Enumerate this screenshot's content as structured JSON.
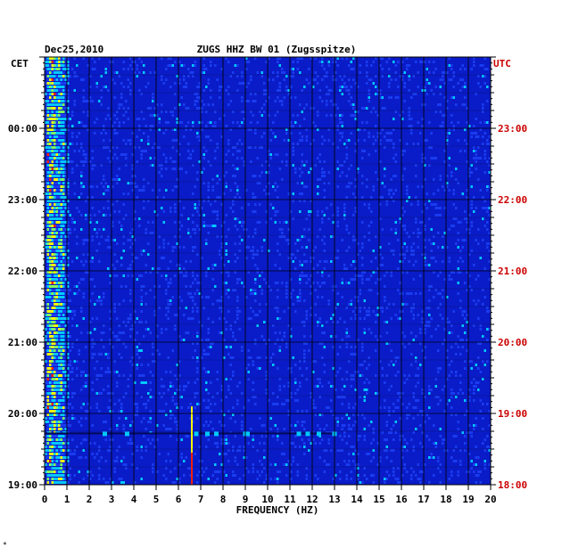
{
  "header": {
    "date": "Dec25,2010",
    "station": "ZUGS HHZ BW 01 (Zugsspitze)"
  },
  "left_axis": {
    "label": "CET",
    "color": "#000000"
  },
  "right_axis": {
    "label": "UTC",
    "color": "#cc0000"
  },
  "footnote": "*",
  "chart_data": {
    "type": "heatmap",
    "title": "ZUGS HHZ BW 01 (Zugsspitze)",
    "date": "Dec25,2010",
    "xlabel": "FREQUENCY (HZ)",
    "xlim": [
      0,
      20
    ],
    "x_ticks": [
      "0",
      "1",
      "2",
      "3",
      "4",
      "5",
      "6",
      "7",
      "8",
      "9",
      "10",
      "11",
      "12",
      "13",
      "14",
      "15",
      "16",
      "17",
      "18",
      "19",
      "20"
    ],
    "y_hours_top_to_bottom": 6,
    "cet_tick_labels": [
      {
        "label": "00:00",
        "hours_from_bottom": 5
      },
      {
        "label": "23:00",
        "hours_from_bottom": 4
      },
      {
        "label": "22:00",
        "hours_from_bottom": 3
      },
      {
        "label": "21:00",
        "hours_from_bottom": 2
      },
      {
        "label": "20:00",
        "hours_from_bottom": 1
      },
      {
        "label": "19:00",
        "hours_from_bottom": 0
      }
    ],
    "utc_tick_labels": [
      {
        "label": "23:00",
        "hours_from_bottom": 5
      },
      {
        "label": "22:00",
        "hours_from_bottom": 4
      },
      {
        "label": "21:00",
        "hours_from_bottom": 3
      },
      {
        "label": "20:00",
        "hours_from_bottom": 2
      },
      {
        "label": "19:00",
        "hours_from_bottom": 1
      },
      {
        "label": "18:00",
        "hours_from_bottom": 0
      }
    ],
    "colors": {
      "background": "#0a1cc8",
      "low": "#1a3cf0",
      "mid": "#00c8ff",
      "high": "#ffff00",
      "peak": "#ff2000"
    },
    "features": [
      {
        "name": "microseism band",
        "freq_range_hz": [
          0.1,
          0.9
        ],
        "intensity": "high"
      },
      {
        "name": "narrow line",
        "freq_hz": 6.6,
        "hours_from_bottom": [
          0,
          1.1
        ],
        "intensity": "peak"
      },
      {
        "name": "broadband event",
        "freq_range_hz": [
          0,
          13
        ],
        "hours_from_bottom": 0.72,
        "intensity": "mid"
      }
    ]
  }
}
